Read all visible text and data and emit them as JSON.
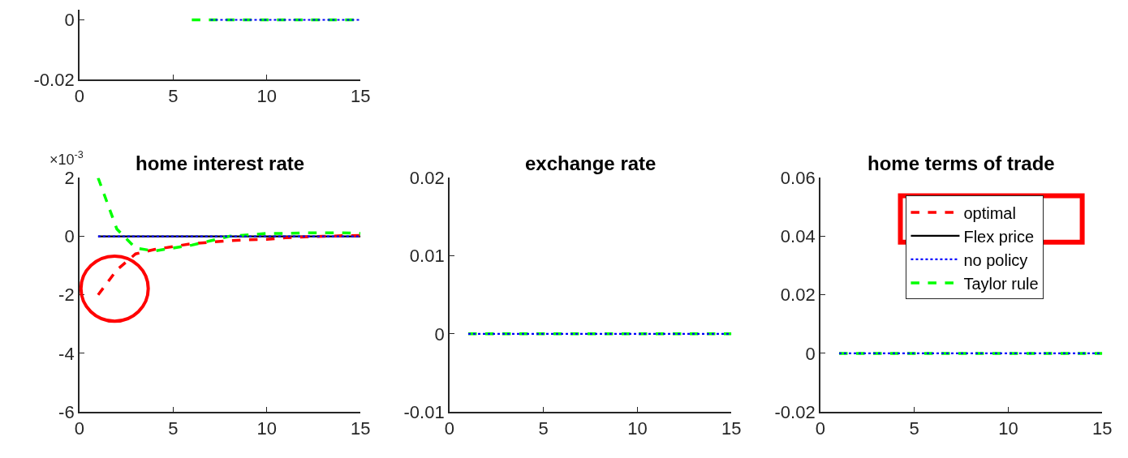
{
  "chart_data": [
    {
      "type": "line",
      "x": [
        6,
        7,
        8,
        9,
        10,
        11,
        12,
        13,
        14,
        15
      ],
      "xlim": [
        0,
        15
      ],
      "xticks": [
        0,
        5,
        10,
        15
      ],
      "ylim": [
        -0.02,
        0.0034
      ],
      "yticks": [
        -0.02,
        0
      ],
      "series": [
        {
          "color": "#00ff00",
          "line_style": "dashed",
          "values": [
            0,
            0,
            0,
            0,
            0,
            0,
            0,
            0,
            0,
            0
          ]
        },
        {
          "color": "#0000ff",
          "line_style": "dotted",
          "values": [
            null,
            0,
            0,
            0,
            0,
            0,
            0,
            0,
            0,
            0
          ]
        }
      ]
    },
    {
      "type": "line",
      "title": "home interest rate",
      "annotations": [
        "×10$^{-3}$"
      ],
      "x": [
        1,
        2,
        3,
        4,
        5,
        6,
        7,
        8,
        9,
        10,
        11,
        12,
        13,
        14,
        15
      ],
      "xlim": [
        0,
        15
      ],
      "xticks": [
        0,
        5,
        10,
        15
      ],
      "ylim": [
        -6,
        2
      ],
      "yticks": [
        -6,
        -4,
        -2,
        0,
        2
      ],
      "series": [
        {
          "color": "#000000",
          "line_style": "solid",
          "values": [
            0,
            0,
            0,
            0,
            0,
            0,
            0,
            0,
            0,
            0,
            0,
            0,
            0,
            0,
            0
          ]
        },
        {
          "color": "#ff0000",
          "line_style": "dashed",
          "values": [
            -2.0,
            -1.15,
            -0.6,
            -0.45,
            -0.35,
            -0.25,
            -0.2,
            -0.15,
            -0.12,
            -0.1,
            -0.05,
            -0.02,
            0.0,
            0.02,
            0.03
          ]
        },
        {
          "color": "#00ff00",
          "line_style": "dashed",
          "values": [
            2.0,
            0.25,
            -0.4,
            -0.5,
            -0.4,
            -0.3,
            -0.15,
            0,
            0.05,
            0.1,
            0.1,
            0.12,
            0.12,
            0.12,
            0.1
          ]
        },
        {
          "color": "#0000ff",
          "line_style": "dotted",
          "values": [
            0,
            0,
            0,
            0,
            0,
            0,
            0,
            0,
            0,
            0,
            0,
            0,
            0,
            0,
            0
          ]
        }
      ]
    },
    {
      "type": "line",
      "title": "exchange rate",
      "x": [
        1,
        2,
        3,
        4,
        5,
        6,
        7,
        8,
        9,
        10,
        11,
        12,
        13,
        14,
        15
      ],
      "xlim": [
        0,
        15
      ],
      "xticks": [
        0,
        5,
        10,
        15
      ],
      "ylim": [
        -0.01,
        0.02
      ],
      "yticks": [
        -0.01,
        0,
        0.01,
        0.02
      ],
      "series": [
        {
          "color": "#00ff00",
          "line_style": "dashed",
          "values": [
            0,
            0,
            0,
            0,
            0,
            0,
            0,
            0,
            0,
            0,
            0,
            0,
            0,
            0,
            0
          ]
        },
        {
          "color": "#0000ff",
          "line_style": "dotted",
          "values": [
            0,
            0,
            0,
            0,
            0,
            0,
            0,
            0,
            0,
            0,
            0,
            0,
            0,
            0,
            0
          ]
        }
      ]
    },
    {
      "type": "line",
      "title": "home terms of trade",
      "legend": "top right",
      "x": [
        1,
        2,
        3,
        4,
        5,
        6,
        7,
        8,
        9,
        10,
        11,
        12,
        13,
        14,
        15
      ],
      "xlim": [
        0,
        15
      ],
      "xticks": [
        0,
        5,
        10,
        15
      ],
      "ylim": [
        -0.02,
        0.06
      ],
      "yticks": [
        -0.02,
        0,
        0.02,
        0.04,
        0.06
      ],
      "series": [
        {
          "name": "optimal",
          "color": "#ff0000",
          "line_style": "dashed",
          "values": [
            null,
            null,
            null,
            null,
            null,
            null,
            null,
            null,
            null,
            null,
            null,
            null,
            null,
            null,
            null
          ]
        },
        {
          "name": "Flex price",
          "color": "#000000",
          "line_style": "solid",
          "values": [
            null,
            null,
            null,
            null,
            null,
            null,
            null,
            null,
            null,
            null,
            null,
            null,
            null,
            null,
            null
          ]
        },
        {
          "name": "Taylor rule",
          "color": "#00ff00",
          "line_style": "dashed",
          "values": [
            0,
            0,
            0,
            0,
            0,
            0,
            0,
            0,
            0,
            0,
            0,
            0,
            0,
            0,
            0
          ]
        },
        {
          "name": "no policy",
          "color": "#0000ff",
          "line_style": "dotted",
          "values": [
            0,
            0,
            0,
            0,
            0,
            0,
            0,
            0,
            0,
            0,
            0,
            0,
            0,
            0,
            0
          ]
        }
      ]
    }
  ]
}
